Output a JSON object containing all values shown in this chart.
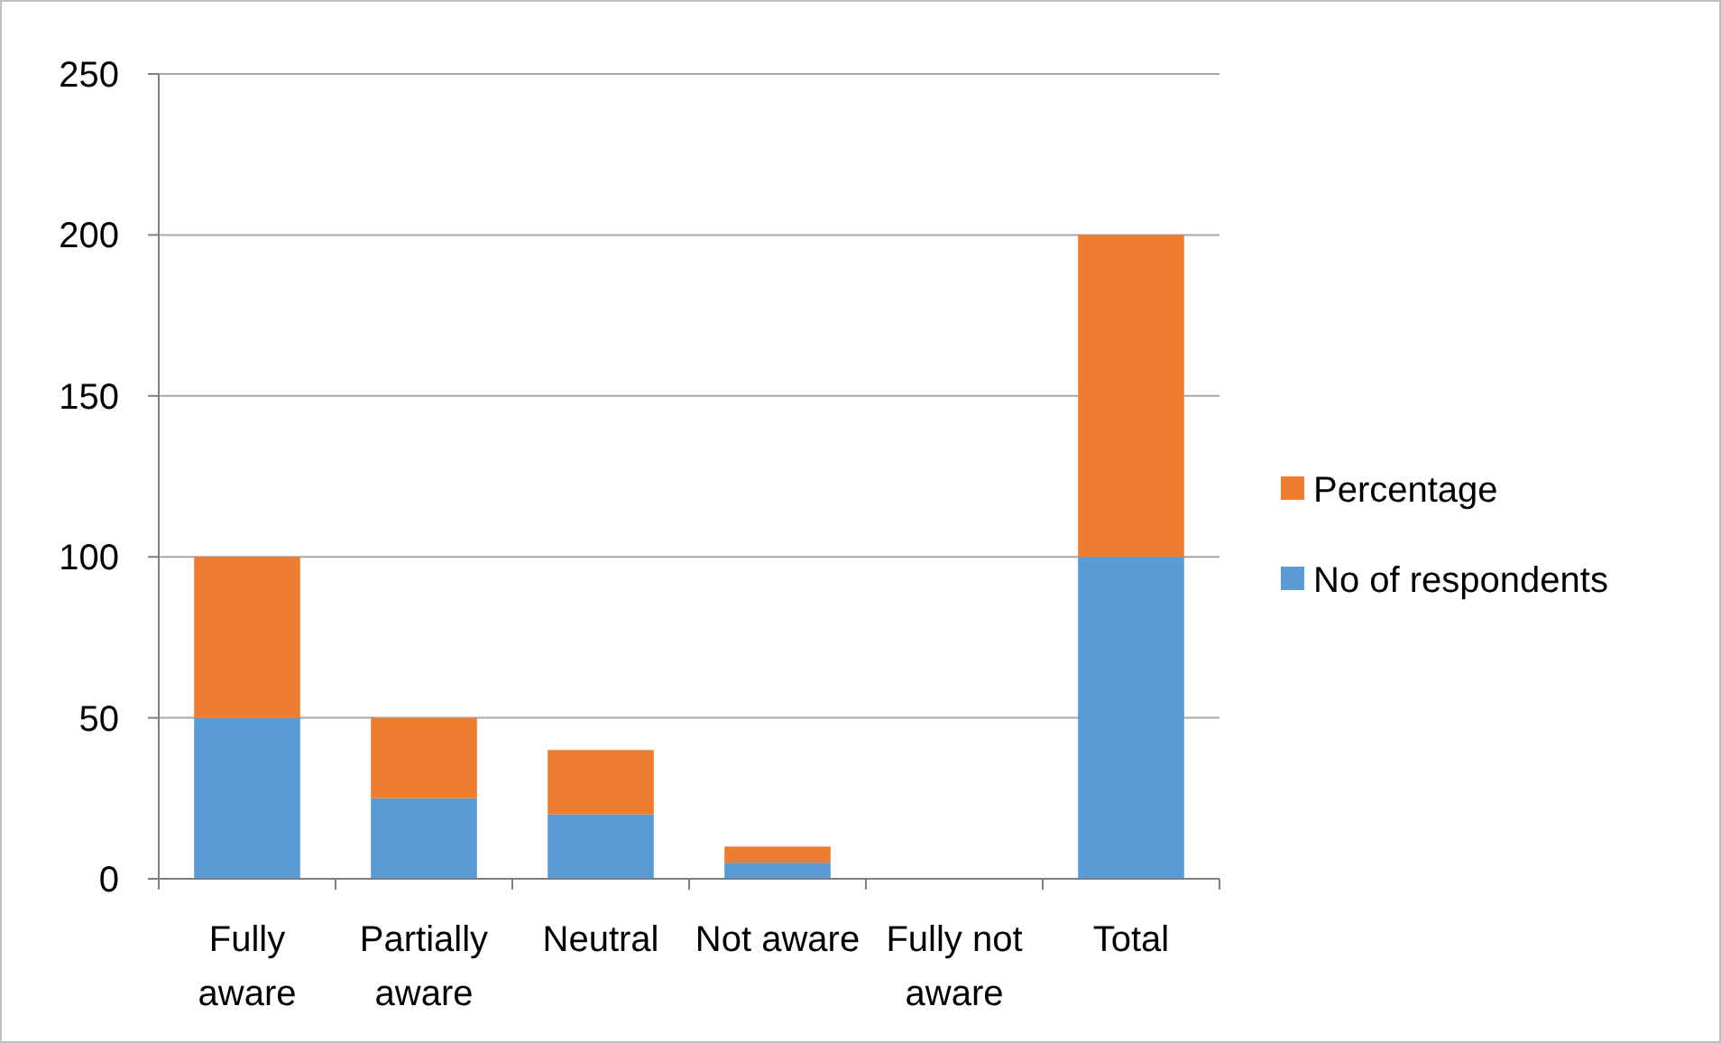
{
  "chart_data": {
    "type": "bar",
    "stacked": true,
    "categories": [
      "Fully aware",
      "Partially aware",
      "Neutral",
      "Not aware",
      "Fully not aware",
      "Total"
    ],
    "series": [
      {
        "name": "No of respondents",
        "color": "#5b9bd5",
        "values": [
          50,
          25,
          20,
          5,
          0,
          100
        ]
      },
      {
        "name": "Percentage",
        "color": "#ed7d31",
        "values": [
          50,
          25,
          20,
          5,
          0,
          100
        ]
      }
    ],
    "ylim": [
      0,
      250
    ],
    "yticks": [
      0,
      50,
      100,
      150,
      200,
      250
    ],
    "grid": "y",
    "legend": "right"
  }
}
